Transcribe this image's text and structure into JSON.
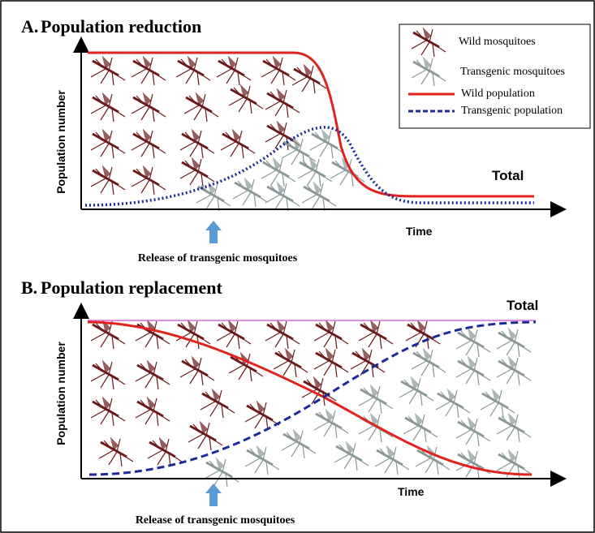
{
  "panel_a": {
    "label": "A.",
    "title": "Population reduction",
    "y_axis_label": "Population number",
    "x_axis_label": "Time",
    "total_label": "Total",
    "release_label": "Release of transgenic mosquitoes",
    "legend": [
      "Wild mosquitoes",
      "Transgenic mosquitoes",
      "Wild population",
      "Transgenic population"
    ]
  },
  "panel_b": {
    "label": "B.",
    "title": "Population replacement",
    "y_axis_label": "Population number",
    "x_axis_label": "Time",
    "total_label": "Total",
    "release_label": "Release of transgenic mosquitoes"
  }
}
